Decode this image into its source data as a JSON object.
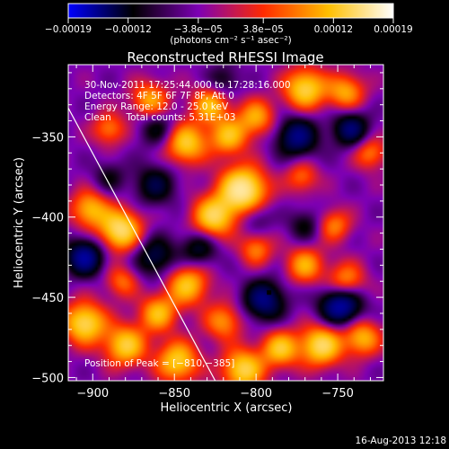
{
  "chart_data": {
    "type": "heatmap",
    "title": "Reconstructed RHESSI Image",
    "xlabel": "Heliocentric X (arcsec)",
    "ylabel": "Heliocentric Y (arcsec)",
    "xlim": [
      -915,
      -722
    ],
    "ylim": [
      -502,
      -305
    ],
    "x_ticks": [
      -900,
      -850,
      -800,
      -750
    ],
    "x_tick_labels": [
      "−900",
      "−850",
      "−800",
      "−750"
    ],
    "y_ticks": [
      -350,
      -400,
      -450,
      -500
    ],
    "y_tick_labels": [
      "−350",
      "−400",
      "−450",
      "−500"
    ],
    "colorbar": {
      "range": [
        -0.00019,
        0.00019
      ],
      "ticks": [
        -0.00019,
        -0.00012,
        -3.8e-05,
        3.8e-05,
        0.00012,
        0.00019
      ],
      "tick_labels": [
        "−0.00019",
        "−0.00012",
        "−3.8e−05",
        "3.8e−05",
        "0.00012",
        "0.00019"
      ],
      "units_label": "(photons cm⁻² s⁻¹ asec⁻²)",
      "colors": [
        "#0000ff",
        "#000000",
        "#7d00b4",
        "#ff2a00",
        "#ffbf00",
        "#ffffff"
      ]
    },
    "annotations": [
      "30-Nov-2011 17:25:44.000 to 17:28:16.000",
      "Detectors: 4F 5F 6F 7F 8F, Att 0",
      "Energy Range: 12.0 - 25.0 keV",
      "Clean     Total counts: 5.31E+03"
    ],
    "peak_label": "Position of Peak = [−810,−385]",
    "peak_position": [
      -810,
      -385
    ],
    "limb_line": [
      [
        -915,
        -332
      ],
      [
        -825,
        -502
      ]
    ],
    "marker": [
      -792,
      -447
    ],
    "blobs": [
      {
        "x": -808,
        "y": -383,
        "v": 1.0,
        "r": 10
      },
      {
        "x": -826,
        "y": -400,
        "v": 0.75,
        "r": 9
      },
      {
        "x": -817,
        "y": -350,
        "v": 0.6,
        "r": 8
      },
      {
        "x": -800,
        "y": -338,
        "v": 0.55,
        "r": 8
      },
      {
        "x": -843,
        "y": -354,
        "v": 0.7,
        "r": 9
      },
      {
        "x": -828,
        "y": -330,
        "v": 0.6,
        "r": 8
      },
      {
        "x": -770,
        "y": -320,
        "v": 0.75,
        "r": 9
      },
      {
        "x": -745,
        "y": -322,
        "v": 0.55,
        "r": 8
      },
      {
        "x": -883,
        "y": -408,
        "v": 0.85,
        "r": 9
      },
      {
        "x": -902,
        "y": -395,
        "v": 0.6,
        "r": 8
      },
      {
        "x": -905,
        "y": -466,
        "v": 0.8,
        "r": 9
      },
      {
        "x": -880,
        "y": -480,
        "v": 0.7,
        "r": 9
      },
      {
        "x": -860,
        "y": -460,
        "v": 0.6,
        "r": 8
      },
      {
        "x": -842,
        "y": -442,
        "v": 0.65,
        "r": 9
      },
      {
        "x": -848,
        "y": -490,
        "v": 0.7,
        "r": 9
      },
      {
        "x": -808,
        "y": -495,
        "v": 0.75,
        "r": 9
      },
      {
        "x": -785,
        "y": -482,
        "v": 0.65,
        "r": 8
      },
      {
        "x": -760,
        "y": -480,
        "v": 0.8,
        "r": 9
      },
      {
        "x": -735,
        "y": -475,
        "v": 0.6,
        "r": 8
      },
      {
        "x": -745,
        "y": -440,
        "v": 0.55,
        "r": 8
      },
      {
        "x": -770,
        "y": -430,
        "v": 0.55,
        "r": 8
      },
      {
        "x": -752,
        "y": -405,
        "v": 0.45,
        "r": 7
      },
      {
        "x": -772,
        "y": -375,
        "v": 0.4,
        "r": 7
      },
      {
        "x": -800,
        "y": -420,
        "v": 0.45,
        "r": 7
      },
      {
        "x": -865,
        "y": -327,
        "v": 0.55,
        "r": 8
      },
      {
        "x": -890,
        "y": -345,
        "v": 0.45,
        "r": 7
      },
      {
        "x": -730,
        "y": -360,
        "v": 0.45,
        "r": 7
      },
      {
        "x": -882,
        "y": -440,
        "v": 0.4,
        "r": 7
      },
      {
        "x": -820,
        "y": -465,
        "v": 0.5,
        "r": 8
      },
      {
        "x": -862,
        "y": -380,
        "v": -0.4,
        "r": 9
      },
      {
        "x": -862,
        "y": -425,
        "v": -0.45,
        "r": 9
      },
      {
        "x": -775,
        "y": -350,
        "v": -0.6,
        "r": 9
      },
      {
        "x": -742,
        "y": -345,
        "v": -0.55,
        "r": 8
      },
      {
        "x": -905,
        "y": -425,
        "v": -0.7,
        "r": 8
      },
      {
        "x": -748,
        "y": -455,
        "v": -0.8,
        "r": 9
      },
      {
        "x": -795,
        "y": -452,
        "v": -0.6,
        "r": 9
      },
      {
        "x": -835,
        "y": -420,
        "v": -0.4,
        "r": 8
      },
      {
        "x": -820,
        "y": -315,
        "v": -0.3,
        "r": 7
      },
      {
        "x": -860,
        "y": -345,
        "v": -0.35,
        "r": 8
      },
      {
        "x": -800,
        "y": -400,
        "v": -0.25,
        "r": 7
      },
      {
        "x": -890,
        "y": -375,
        "v": -0.25,
        "r": 7
      },
      {
        "x": -770,
        "y": -405,
        "v": -0.3,
        "r": 7
      }
    ]
  },
  "footer": {
    "date": "16-Aug-2013 12:18"
  }
}
